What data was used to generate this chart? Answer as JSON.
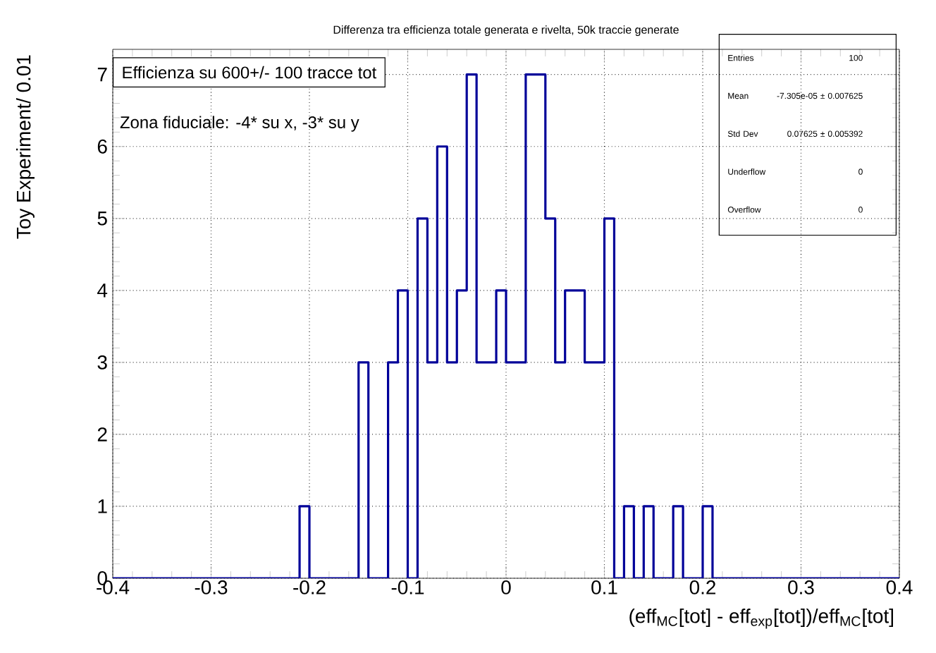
{
  "chart_data": {
    "type": "histogram",
    "title": "Differenza tra efficienza totale generata e rivelta, 50k traccie generate",
    "xlabel": "(eff$_{MC}$[tot] - eff$_{exp}$[tot])/eff$_{MC}$[tot]",
    "ylabel": "Toy Experiment/ 0.01",
    "bins": [
      -0.4,
      -0.39,
      -0.38,
      -0.37,
      -0.36,
      -0.35,
      -0.34,
      -0.33,
      -0.32,
      -0.31,
      -0.3,
      -0.29,
      -0.28,
      -0.27,
      -0.26,
      -0.25,
      -0.24,
      -0.23,
      -0.22,
      -0.21,
      -0.2,
      -0.19,
      -0.18,
      -0.17,
      -0.16,
      -0.15,
      -0.14,
      -0.13,
      -0.12,
      -0.11,
      -0.1,
      -0.09,
      -0.08,
      -0.07,
      -0.06,
      -0.05,
      -0.04,
      -0.03,
      -0.02,
      -0.01,
      0,
      0.01,
      0.02,
      0.03,
      0.04,
      0.05,
      0.06,
      0.07,
      0.08,
      0.09,
      0.1,
      0.11,
      0.12,
      0.13,
      0.14,
      0.15,
      0.16,
      0.17,
      0.18,
      0.19,
      0.2,
      0.21,
      0.22,
      0.23,
      0.24,
      0.25,
      0.26,
      0.27,
      0.28,
      0.29,
      0.3,
      0.31,
      0.32,
      0.33,
      0.34,
      0.35,
      0.36,
      0.37,
      0.38,
      0.39,
      0.4
    ],
    "values": [
      0,
      0,
      0,
      0,
      0,
      0,
      0,
      0,
      0,
      0,
      0,
      0,
      0,
      0,
      0,
      0,
      0,
      0,
      0,
      1,
      0,
      0,
      0,
      0,
      0,
      3,
      0,
      0,
      3,
      4,
      0,
      5,
      3,
      6,
      3,
      4,
      7,
      3,
      3,
      4,
      3,
      3,
      7,
      7,
      5,
      3,
      4,
      4,
      3,
      3,
      5,
      0,
      1,
      0,
      1,
      0,
      0,
      1,
      0,
      0,
      1,
      0,
      0,
      0,
      0,
      0,
      0,
      0,
      0,
      0,
      0,
      0,
      0,
      0,
      0,
      0,
      0,
      0,
      0,
      0
    ],
    "color": "#000099",
    "xlim": [
      -0.4,
      0.4
    ],
    "ylim": [
      0,
      7.35
    ],
    "xticks": [
      -0.4,
      -0.3,
      -0.2,
      -0.1,
      0,
      0.1,
      0.2,
      0.3,
      0.4
    ],
    "yticks": [
      0,
      1,
      2,
      3,
      4,
      5,
      6,
      7
    ],
    "grid": true,
    "annotations": [
      "Efficienza su 600+/- 100 tracce tot",
      "Zona fiduciale: -4* su x, -3* su y",
      "Entries",
      "100",
      "Mean",
      "-7.305e-05 ± 0.007625",
      "Std Dev",
      "0.07625 ± 0.005392",
      "Underflow",
      "0",
      "Overflow",
      "0"
    ]
  }
}
